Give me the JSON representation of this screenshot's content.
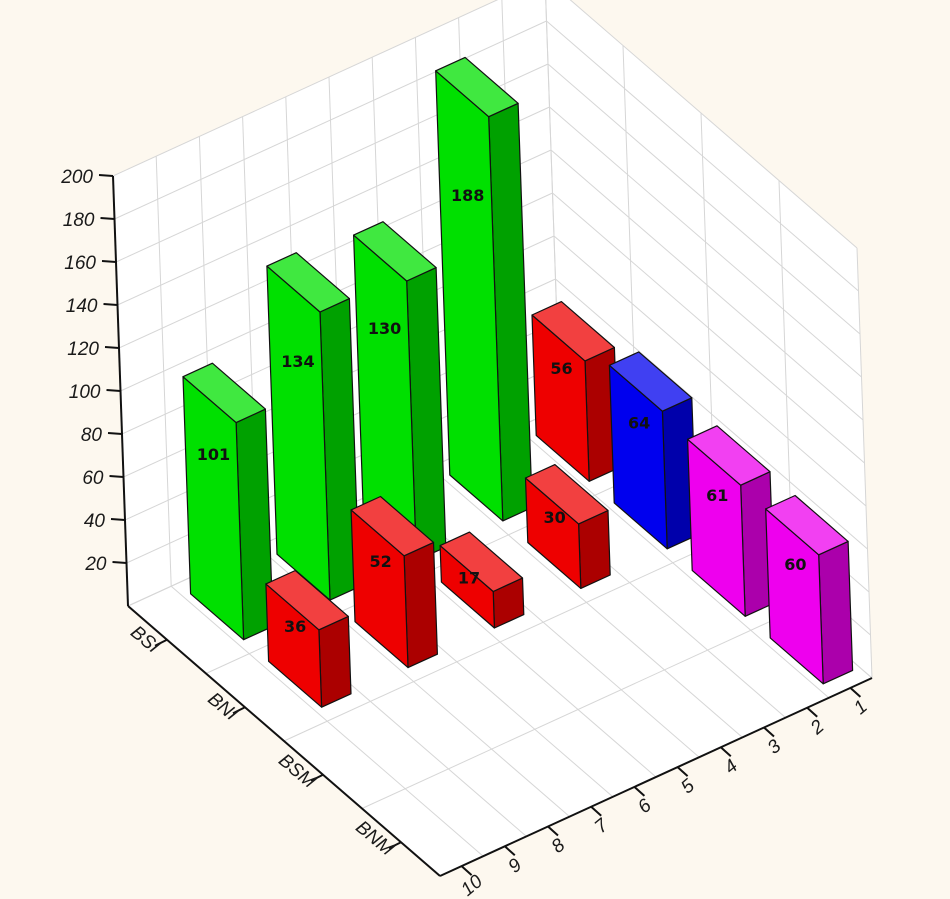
{
  "chart_data": {
    "type": "bar3d",
    "z_ticks": [
      "20",
      "40",
      "60",
      "80",
      "100",
      "120",
      "140",
      "160",
      "180",
      "200"
    ],
    "zlim": [
      0,
      200
    ],
    "rows": [
      "BSI",
      "BNI",
      "BSM",
      "BNM"
    ],
    "columns": [
      "1",
      "2",
      "3",
      "4",
      "5",
      "6",
      "7",
      "8",
      "9",
      "10"
    ],
    "grid": true,
    "bars": [
      {
        "row": "BSI",
        "column": "9",
        "value": 101,
        "label": "101",
        "color": "#00e000"
      },
      {
        "row": "BSI",
        "column": "7",
        "value": 134,
        "label": "134",
        "color": "#00e000"
      },
      {
        "row": "BSI",
        "column": "5",
        "value": 130,
        "label": "130",
        "color": "#00e000"
      },
      {
        "row": "BSI",
        "column": "3",
        "value": 188,
        "label": "188",
        "color": "#00e000"
      },
      {
        "row": "BSI",
        "column": "1",
        "value": 56,
        "label": "56",
        "color": "#ee0000"
      },
      {
        "row": "BNI",
        "column": "9",
        "value": 36,
        "label": "36",
        "color": "#ee0000"
      },
      {
        "row": "BNI",
        "column": "7",
        "value": 52,
        "label": "52",
        "color": "#ee0000"
      },
      {
        "row": "BNI",
        "column": "5",
        "value": 17,
        "label": "17",
        "color": "#ee0000"
      },
      {
        "row": "BNI",
        "column": "3",
        "value": 30,
        "label": "30",
        "color": "#ee0000"
      },
      {
        "row": "BNI",
        "column": "1",
        "value": 64,
        "label": "64",
        "color": "#0000ee"
      },
      {
        "row": "BSM",
        "column": "1",
        "value": 61,
        "label": "61",
        "color": "#ee00ee"
      },
      {
        "row": "BNM",
        "column": "1",
        "value": 60,
        "label": "60",
        "color": "#ee00ee"
      }
    ]
  }
}
